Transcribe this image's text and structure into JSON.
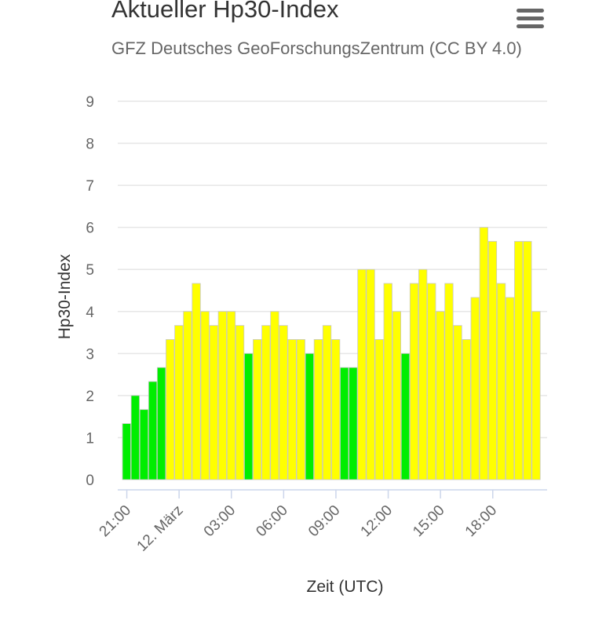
{
  "title": "Aktueller Hp30-Index",
  "subtitle": "GFZ Deutsches GeoForschungsZentrum (CC BY 4.0)",
  "icons": {
    "menu": "hamburger-menu-icon"
  },
  "chart_data": {
    "type": "bar",
    "xlabel": "Zeit (UTC)",
    "ylabel": "Hp30-Index",
    "ylim": [
      0,
      9
    ],
    "y_ticks": [
      0,
      1,
      2,
      3,
      4,
      5,
      6,
      7,
      8,
      9
    ],
    "x_tick_labels": [
      "21:00",
      "12. März",
      "03:00",
      "06:00",
      "09:00",
      "12:00",
      "15:00",
      "18:00"
    ],
    "grid": true,
    "colors": {
      "quiet": "#00ee00",
      "active": "#ffff00"
    },
    "values": [
      1.333,
      2.0,
      1.667,
      2.333,
      2.667,
      3.333,
      3.667,
      4.0,
      4.667,
      4.0,
      3.667,
      4.0,
      4.0,
      3.667,
      3.0,
      3.333,
      3.667,
      4.0,
      3.667,
      3.333,
      3.333,
      3.0,
      3.333,
      3.667,
      3.333,
      2.667,
      2.667,
      5.0,
      5.0,
      3.333,
      4.667,
      4.0,
      3.0,
      4.667,
      5.0,
      4.667,
      4.0,
      4.667,
      3.667,
      3.333,
      4.333,
      6.0,
      5.667,
      4.667,
      4.333,
      5.667,
      5.667,
      4.0
    ],
    "bar_colors": [
      "quiet",
      "quiet",
      "quiet",
      "quiet",
      "quiet",
      "active",
      "active",
      "active",
      "active",
      "active",
      "active",
      "active",
      "active",
      "active",
      "quiet",
      "active",
      "active",
      "active",
      "active",
      "active",
      "active",
      "quiet",
      "active",
      "active",
      "active",
      "quiet",
      "quiet",
      "active",
      "active",
      "active",
      "active",
      "active",
      "quiet",
      "active",
      "active",
      "active",
      "active",
      "active",
      "active",
      "active",
      "active",
      "active",
      "active",
      "active",
      "active",
      "active",
      "active",
      "active"
    ]
  }
}
